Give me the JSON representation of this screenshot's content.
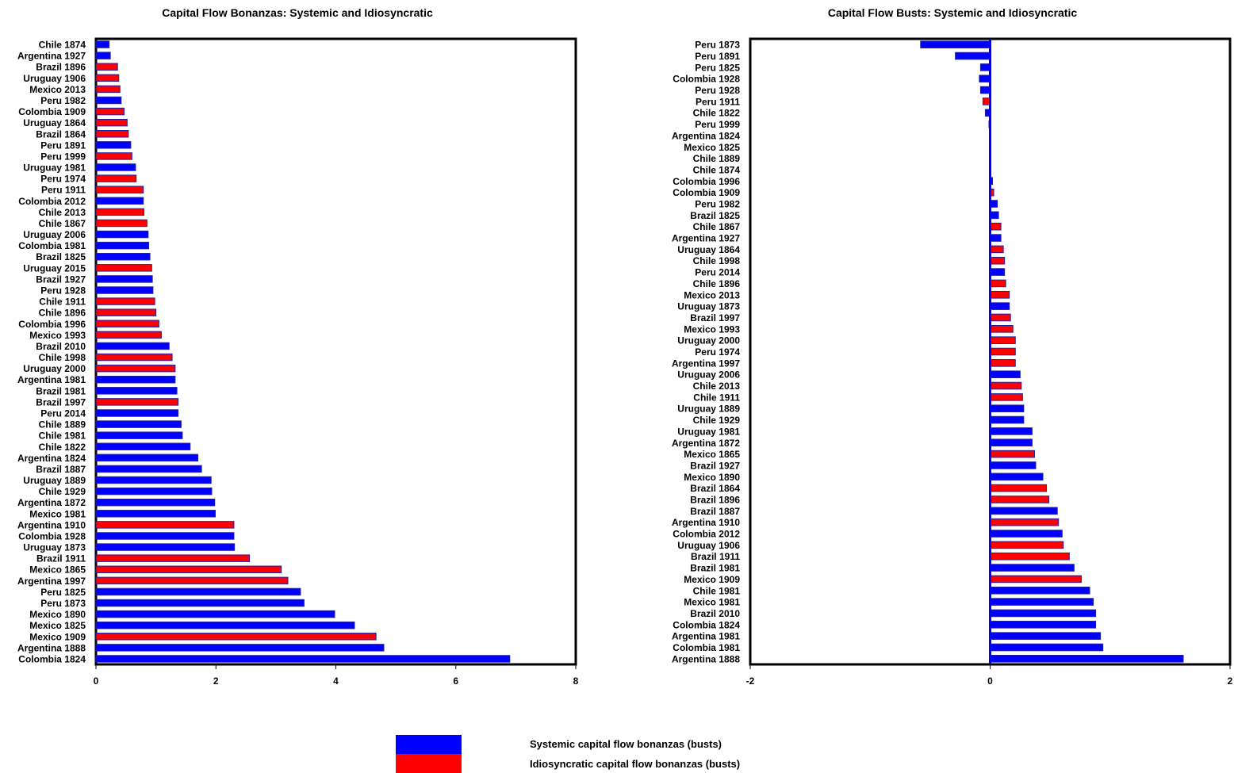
{
  "colors": {
    "systemic": "#0000ff",
    "idiosyncratic": "#ff0000",
    "bar_edge": "#2020a0"
  },
  "legend": {
    "systemic_label": "Systemic capital flow bonanzas (busts)",
    "idiosyncratic_label": "Idiosyncratic capital flow bonanzas (busts)"
  },
  "chart_data": [
    {
      "type": "bar",
      "orientation": "horizontal",
      "title": "Capital Flow Bonanzas: Systemic and Idiosyncratic",
      "xlim": [
        0,
        8
      ],
      "xticks": [
        0,
        2,
        4,
        6,
        8
      ],
      "categories": [
        "Chile 1874",
        "Argentina 1927",
        "Brazil 1896",
        "Uruguay 1906",
        "Mexico 2013",
        "Peru 1982",
        "Colombia 1909",
        "Uruguay 1864",
        "Brazil 1864",
        "Peru 1891",
        "Peru 1999",
        "Uruguay 1981",
        "Peru 1974",
        "Peru 1911",
        "Colombia 2012",
        "Chile 2013",
        "Chile 1867",
        "Uruguay 2006",
        "Colombia 1981",
        "Brazil 1825",
        "Uruguay 2015",
        "Brazil 1927",
        "Peru 1928",
        "Chile 1911",
        "Chile 1896",
        "Colombia 1996",
        "Mexico 1993",
        "Brazil 2010",
        "Chile 1998",
        "Uruguay 2000",
        "Argentina 1981",
        "Brazil 1981",
        "Brazil 1997",
        "Peru 2014",
        "Chile 1889",
        "Chile 1981",
        "Chile 1822",
        "Argentina 1824",
        "Brazil 1887",
        "Uruguay 1889",
        "Chile 1929",
        "Argentina 1872",
        "Mexico 1981",
        "Argentina 1910",
        "Colombia 1928",
        "Uruguay 1873",
        "Brazil 1911",
        "Mexico 1865",
        "Argentina 1997",
        "Peru 1825",
        "Peru 1873",
        "Mexico 1890",
        "Mexico 1825",
        "Mexico 1909",
        "Argentina 1888",
        "Colombia 1824"
      ],
      "values": [
        0.22,
        0.24,
        0.36,
        0.38,
        0.4,
        0.42,
        0.47,
        0.52,
        0.54,
        0.58,
        0.6,
        0.66,
        0.67,
        0.79,
        0.79,
        0.8,
        0.85,
        0.87,
        0.88,
        0.9,
        0.93,
        0.94,
        0.95,
        0.98,
        1.0,
        1.05,
        1.09,
        1.22,
        1.27,
        1.32,
        1.32,
        1.35,
        1.37,
        1.37,
        1.42,
        1.44,
        1.57,
        1.7,
        1.76,
        1.92,
        1.93,
        1.98,
        1.99,
        2.3,
        2.3,
        2.31,
        2.56,
        3.09,
        3.2,
        3.41,
        3.47,
        3.98,
        4.31,
        4.67,
        4.8,
        6.9
      ],
      "kind": [
        "S",
        "S",
        "I",
        "I",
        "I",
        "S",
        "I",
        "I",
        "I",
        "S",
        "I",
        "S",
        "I",
        "I",
        "S",
        "I",
        "I",
        "S",
        "S",
        "S",
        "I",
        "S",
        "S",
        "I",
        "I",
        "I",
        "I",
        "S",
        "I",
        "I",
        "S",
        "S",
        "I",
        "S",
        "S",
        "S",
        "S",
        "S",
        "S",
        "S",
        "S",
        "S",
        "S",
        "I",
        "S",
        "S",
        "I",
        "I",
        "I",
        "S",
        "S",
        "S",
        "S",
        "I",
        "S",
        "S"
      ]
    },
    {
      "type": "bar",
      "orientation": "horizontal",
      "title": "Capital Flow Busts: Systemic and Idiosyncratic",
      "xlim": [
        -2,
        2
      ],
      "xticks": [
        -2,
        0,
        2
      ],
      "categories": [
        "Peru 1873",
        "Peru 1891",
        "Peru 1825",
        "Colombia 1928",
        "Peru 1928",
        "Peru 1911",
        "Chile 1822",
        "Peru 1999",
        "Argentina 1824",
        "Mexico 1825",
        "Chile 1889",
        "Chile 1874",
        "Colombia 1996",
        "Colombia 1909",
        "Peru 1982",
        "Brazil 1825",
        "Chile 1867",
        "Argentina 1927",
        "Uruguay 1864",
        "Chile 1998",
        "Peru 2014",
        "Chile 1896",
        "Mexico 2013",
        "Uruguay 1873",
        "Brazil 1997",
        "Mexico 1993",
        "Uruguay 2000",
        "Peru 1974",
        "Argentina 1997",
        "Uruguay 2006",
        "Chile 2013",
        "Chile 1911",
        "Uruguay 1889",
        "Chile 1929",
        "Uruguay 1981",
        "Argentina 1872",
        "Mexico 1865",
        "Brazil 1927",
        "Mexico 1890",
        "Brazil 1864",
        "Brazil 1896",
        "Brazil 1887",
        "Argentina 1910",
        "Colombia 2012",
        "Uruguay 1906",
        "Brazil 1911",
        "Brazil 1981",
        "Mexico 1909",
        "Chile 1981",
        "Mexico 1981",
        "Brazil 2010",
        "Colombia 1824",
        "Argentina 1981",
        "Colombia 1981",
        "Argentina 1888"
      ],
      "values": [
        -0.58,
        -0.29,
        -0.08,
        -0.09,
        -0.08,
        -0.06,
        -0.04,
        -0.01,
        0.0,
        0.0,
        0.0,
        0.0,
        0.02,
        0.03,
        0.06,
        0.07,
        0.09,
        0.09,
        0.11,
        0.12,
        0.12,
        0.13,
        0.16,
        0.16,
        0.17,
        0.19,
        0.21,
        0.21,
        0.21,
        0.25,
        0.26,
        0.27,
        0.28,
        0.28,
        0.35,
        0.35,
        0.37,
        0.38,
        0.44,
        0.47,
        0.49,
        0.56,
        0.57,
        0.6,
        0.61,
        0.66,
        0.7,
        0.76,
        0.83,
        0.86,
        0.88,
        0.88,
        0.92,
        0.94,
        1.61
      ],
      "kind": [
        "S",
        "S",
        "S",
        "S",
        "S",
        "I",
        "S",
        "S",
        "S",
        "S",
        "S",
        "S",
        "S",
        "I",
        "S",
        "S",
        "I",
        "S",
        "I",
        "I",
        "S",
        "I",
        "I",
        "S",
        "I",
        "I",
        "I",
        "I",
        "I",
        "S",
        "I",
        "I",
        "S",
        "S",
        "S",
        "S",
        "I",
        "S",
        "S",
        "I",
        "I",
        "S",
        "I",
        "S",
        "I",
        "I",
        "S",
        "I",
        "S",
        "S",
        "S",
        "S",
        "S",
        "S",
        "S"
      ]
    }
  ]
}
